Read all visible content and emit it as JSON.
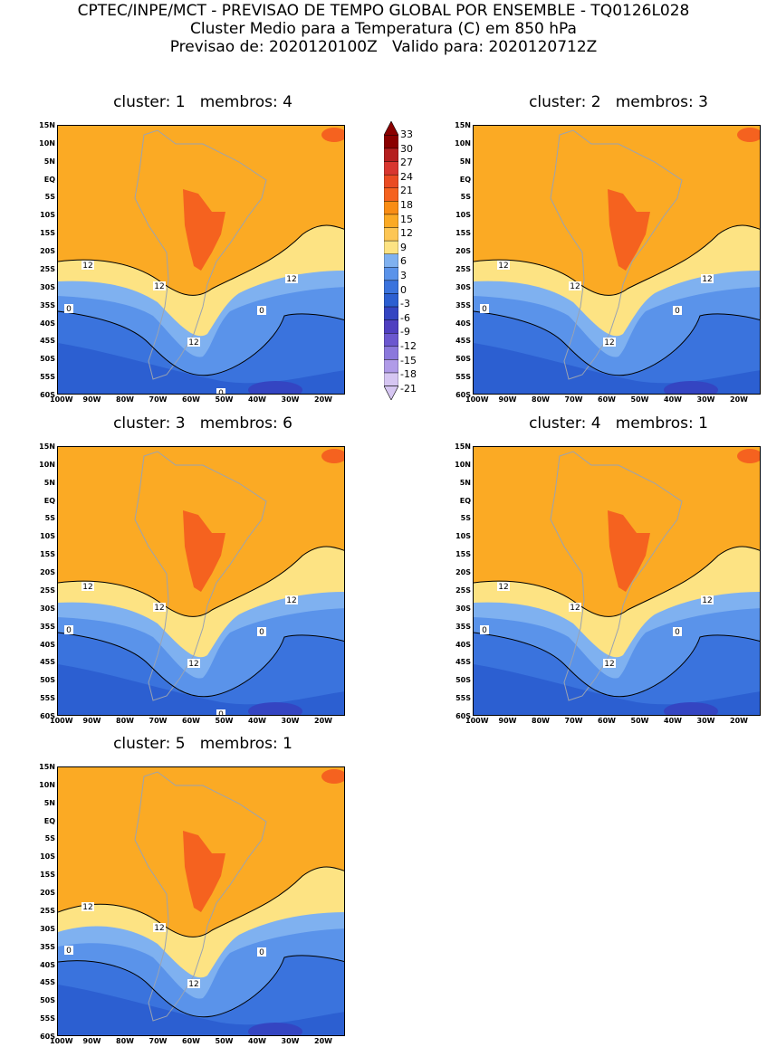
{
  "header": {
    "line1": "CPTEC/INPE/MCT - PREVISAO DE TEMPO GLOBAL POR ENSEMBLE - TQ0126L028",
    "line2": "Cluster Medio para a Temperatura (C) em 850 hPa",
    "line3": "Previsao de: 2020120100Z   Valido para: 2020120712Z"
  },
  "lat_labels": [
    "15N",
    "10N",
    "5N",
    "EQ",
    "5S",
    "10S",
    "15S",
    "20S",
    "25S",
    "30S",
    "35S",
    "40S",
    "45S",
    "50S",
    "55S",
    "60S"
  ],
  "lon_labels": [
    "100W",
    "90W",
    "80W",
    "70W",
    "60W",
    "50W",
    "40W",
    "30W",
    "20W"
  ],
  "colorbar": {
    "labels": [
      "33",
      "30",
      "27",
      "24",
      "21",
      "18",
      "15",
      "12",
      "9",
      "6",
      "3",
      "0",
      "-3",
      "-6",
      "-9",
      "-12",
      "-15",
      "-18",
      "-21"
    ],
    "colors": [
      "#8a0000",
      "#b51f1f",
      "#d8362f",
      "#ea4b22",
      "#f5621f",
      "#f98d14",
      "#fbaa24",
      "#fdc654",
      "#fde383",
      "#7fb1f0",
      "#5a93ea",
      "#3a73dd",
      "#2c5fd1",
      "#3445c2",
      "#4f3fc0",
      "#6b57cf",
      "#8b78dc",
      "#b09be8",
      "#d6c6f2"
    ]
  },
  "panels": [
    {
      "title": "cluster: 1   membros: 4",
      "labels_12": [
        "12",
        "12",
        "12",
        "12"
      ],
      "labels_0": [
        "0",
        "0",
        "0"
      ]
    },
    {
      "title": "cluster: 2   membros: 3",
      "labels_12": [
        "12",
        "12",
        "12",
        "12"
      ],
      "labels_0": [
        "0",
        "0"
      ]
    },
    {
      "title": "cluster: 3   membros: 6",
      "labels_12": [
        "12",
        "12",
        "12",
        "12"
      ],
      "labels_0": [
        "0",
        "0",
        "0"
      ]
    },
    {
      "title": "cluster: 4   membros: 1",
      "labels_12": [
        "12",
        "12",
        "12",
        "12"
      ],
      "labels_0": [
        "0",
        "0"
      ]
    },
    {
      "title": "cluster: 5   membros: 1",
      "labels_12": [
        "12",
        "12",
        "12"
      ],
      "labels_0": [
        "0",
        "0"
      ]
    }
  ]
}
